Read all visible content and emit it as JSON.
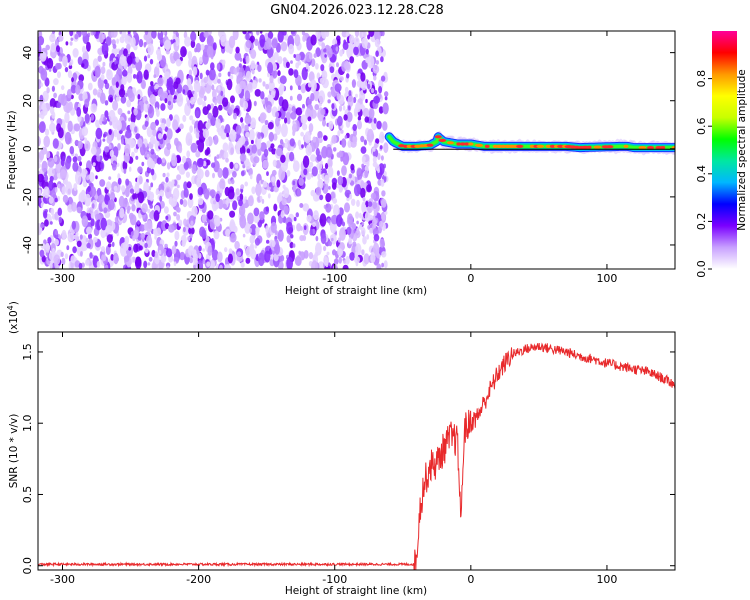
{
  "title": "GN04.2026.023.12.28.C28",
  "chart_data": [
    {
      "type": "heatmap",
      "name": "spectrogram",
      "xlabel": "Height of straight line (km)",
      "ylabel": "Frequency (Hz)",
      "xlim": [
        -318,
        150
      ],
      "ylim": [
        -50,
        49
      ],
      "xticks": [
        -300,
        -200,
        -100,
        0,
        100
      ],
      "yticks": [
        -40,
        -20,
        0,
        20,
        40
      ],
      "colorbar": {
        "label": "Normalized spectral amplitude",
        "range": [
          0,
          1
        ],
        "ticks": [
          "0.0",
          "0.2",
          "0.4",
          "0.6",
          "0.8"
        ],
        "tick_values": [
          0.0,
          0.2,
          0.4,
          0.6,
          0.8
        ],
        "colors": [
          "#ffffff",
          "#c8a0ff",
          "#7a00ff",
          "#0000ff",
          "#00b7ff",
          "#00e8a0",
          "#00ff00",
          "#c8ff00",
          "#ffff00",
          "#ff9900",
          "#ff0000",
          "#ff0099"
        ]
      },
      "noise_region_x": [
        -318,
        -62
      ],
      "signal_ridge": [
        {
          "x": -60,
          "freq": 5
        },
        {
          "x": -57,
          "freq": 3
        },
        {
          "x": -50,
          "freq": 1
        },
        {
          "x": -40,
          "freq": 1
        },
        {
          "x": -30,
          "freq": 1.5
        },
        {
          "x": -25,
          "freq": 3
        },
        {
          "x": -24,
          "freq": 5
        },
        {
          "x": -20,
          "freq": 3
        },
        {
          "x": -10,
          "freq": 2
        },
        {
          "x": 0,
          "freq": 2
        },
        {
          "x": 10,
          "freq": 1
        },
        {
          "x": 40,
          "freq": 1
        },
        {
          "x": 70,
          "freq": 1
        },
        {
          "x": 80,
          "freq": 0.5
        },
        {
          "x": 110,
          "freq": 1
        },
        {
          "x": 115,
          "freq": 1
        },
        {
          "x": 120,
          "freq": 0.5
        },
        {
          "x": 150,
          "freq": 0.5
        }
      ],
      "reference_line_freq": 0
    },
    {
      "type": "line",
      "name": "snr",
      "series_name": "SNR",
      "xlabel": "Height of straight line (km)",
      "ylabel": "SNR (10 * v/v)",
      "y_scale_label": "(x10",
      "y_scale_exp": "4",
      "y_scale_close": ")",
      "xlim": [
        -318,
        150
      ],
      "ylim": [
        -0.03,
        1.64
      ],
      "xticks": [
        -300,
        -200,
        -100,
        0,
        100
      ],
      "yticks": [
        "0.0",
        "0.5",
        "1.0",
        "1.5"
      ],
      "ytick_values": [
        0.0,
        0.5,
        1.0,
        1.5
      ],
      "color": "#e8292b",
      "points": [
        {
          "x": -318,
          "y": 0.01
        },
        {
          "x": -200,
          "y": 0.01
        },
        {
          "x": -42,
          "y": 0.01
        },
        {
          "x": -40,
          "y": 0.05
        },
        {
          "x": -38,
          "y": 0.35
        },
        {
          "x": -35,
          "y": 0.55
        },
        {
          "x": -30,
          "y": 0.7
        },
        {
          "x": -25,
          "y": 0.72
        },
        {
          "x": -20,
          "y": 0.82
        },
        {
          "x": -15,
          "y": 0.9
        },
        {
          "x": -10,
          "y": 0.88
        },
        {
          "x": -7,
          "y": 0.3
        },
        {
          "x": -5,
          "y": 0.95
        },
        {
          "x": 0,
          "y": 1.0
        },
        {
          "x": 5,
          "y": 1.05
        },
        {
          "x": 10,
          "y": 1.15
        },
        {
          "x": 15,
          "y": 1.25
        },
        {
          "x": 20,
          "y": 1.35
        },
        {
          "x": 25,
          "y": 1.42
        },
        {
          "x": 30,
          "y": 1.48
        },
        {
          "x": 40,
          "y": 1.52
        },
        {
          "x": 50,
          "y": 1.54
        },
        {
          "x": 60,
          "y": 1.52
        },
        {
          "x": 70,
          "y": 1.5
        },
        {
          "x": 80,
          "y": 1.47
        },
        {
          "x": 90,
          "y": 1.45
        },
        {
          "x": 100,
          "y": 1.42
        },
        {
          "x": 110,
          "y": 1.4
        },
        {
          "x": 120,
          "y": 1.38
        },
        {
          "x": 130,
          "y": 1.36
        },
        {
          "x": 140,
          "y": 1.32
        },
        {
          "x": 150,
          "y": 1.27
        }
      ]
    }
  ]
}
